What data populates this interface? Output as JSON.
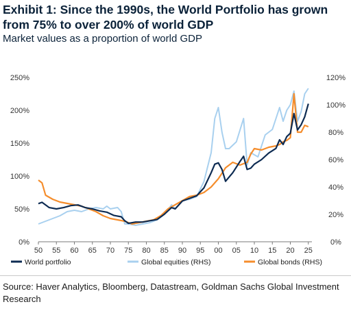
{
  "title": "Exhibit 1: Since the 1990s, the World Portfolio has grown from 75% to over 200% of world GDP",
  "subtitle": "Market values as a proportion of world GDP",
  "source": "Source: Haver Analytics, Bloomberg, Datastream, Goldman Sachs Global Investment Research",
  "colors": {
    "world_portfolio": "#0d2b52",
    "global_equities": "#a8d0ef",
    "global_bonds": "#f58d2c"
  },
  "chart_data": {
    "type": "line",
    "x_ticks": [
      "50",
      "55",
      "60",
      "65",
      "70",
      "75",
      "80",
      "85",
      "90",
      "95",
      "00",
      "05",
      "10",
      "15",
      "20",
      "25"
    ],
    "x_tick_years": [
      1950,
      1955,
      1960,
      1965,
      1970,
      1975,
      1980,
      1985,
      1990,
      1995,
      2000,
      2005,
      2010,
      2015,
      2020,
      2025
    ],
    "x_range": [
      1950,
      2026
    ],
    "left_axis": {
      "ticks": [
        "0%",
        "50%",
        "100%",
        "150%",
        "200%",
        "250%"
      ],
      "values": [
        0,
        50,
        100,
        150,
        200,
        250
      ],
      "range": [
        0,
        250
      ]
    },
    "right_axis": {
      "ticks": [
        "0%",
        "20%",
        "40%",
        "60%",
        "80%",
        "100%",
        "120%"
      ],
      "values": [
        0,
        20,
        40,
        60,
        80,
        100,
        120
      ],
      "range": [
        0,
        120
      ]
    },
    "legend_position": "bottom",
    "series": [
      {
        "name": "World portfolio",
        "axis": "left",
        "x": [
          1950,
          1951,
          1953,
          1955,
          1957,
          1959,
          1961,
          1963,
          1965,
          1967,
          1969,
          1971,
          1973,
          1974,
          1975,
          1977,
          1979,
          1981,
          1983,
          1985,
          1987,
          1988,
          1990,
          1992,
          1994,
          1996,
          1998,
          1999,
          2000,
          2001,
          2002,
          2004,
          2006,
          2007,
          2008,
          2009,
          2010,
          2012,
          2014,
          2016,
          2017,
          2018,
          2019,
          2020,
          2021,
          2022,
          2023,
          2024,
          2025
        ],
        "y": [
          58,
          60,
          52,
          50,
          52,
          55,
          56,
          52,
          50,
          47,
          45,
          40,
          38,
          32,
          28,
          30,
          30,
          32,
          34,
          42,
          52,
          50,
          62,
          66,
          70,
          82,
          105,
          118,
          120,
          110,
          92,
          105,
          122,
          130,
          110,
          112,
          118,
          125,
          135,
          142,
          155,
          148,
          160,
          165,
          195,
          170,
          178,
          190,
          210
        ]
      },
      {
        "name": "Global equities (RHS)",
        "axis": "right",
        "x": [
          1950,
          1952,
          1954,
          1956,
          1958,
          1960,
          1962,
          1964,
          1966,
          1968,
          1969,
          1970,
          1972,
          1973,
          1974,
          1975,
          1977,
          1979,
          1981,
          1983,
          1985,
          1987,
          1988,
          1990,
          1992,
          1994,
          1996,
          1998,
          1999,
          2000,
          2001,
          2002,
          2003,
          2005,
          2007,
          2008,
          2009,
          2011,
          2013,
          2015,
          2017,
          2018,
          2019,
          2020,
          2021,
          2022,
          2023,
          2024,
          2025
        ],
        "y": [
          13,
          15,
          17,
          19,
          22,
          23,
          22,
          24,
          25,
          24,
          26,
          24,
          25,
          22,
          13,
          13,
          12,
          13,
          14,
          16,
          20,
          27,
          24,
          30,
          31,
          33,
          44,
          65,
          90,
          98,
          80,
          68,
          68,
          73,
          90,
          56,
          65,
          62,
          78,
          82,
          98,
          88,
          96,
          100,
          110,
          88,
          95,
          108,
          112
        ]
      },
      {
        "name": "Global bonds (RHS)",
        "axis": "right",
        "x": [
          1950,
          1951,
          1952,
          1954,
          1956,
          1958,
          1960,
          1962,
          1964,
          1966,
          1968,
          1970,
          1972,
          1974,
          1976,
          1978,
          1980,
          1982,
          1984,
          1986,
          1988,
          1990,
          1992,
          1994,
          1996,
          1998,
          2000,
          2002,
          2004,
          2006,
          2008,
          2009,
          2010,
          2012,
          2014,
          2016,
          2017,
          2018,
          2019,
          2020,
          2021,
          2022,
          2023,
          2024,
          2025
        ],
        "y": [
          45,
          43,
          34,
          31,
          29,
          28,
          27,
          26,
          24,
          22,
          19,
          17,
          16,
          15,
          13,
          14,
          15,
          16,
          19,
          24,
          27,
          30,
          33,
          34,
          36,
          40,
          46,
          54,
          58,
          56,
          58,
          64,
          68,
          67,
          69,
          70,
          71,
          73,
          74,
          76,
          108,
          80,
          80,
          85,
          84
        ]
      }
    ]
  }
}
